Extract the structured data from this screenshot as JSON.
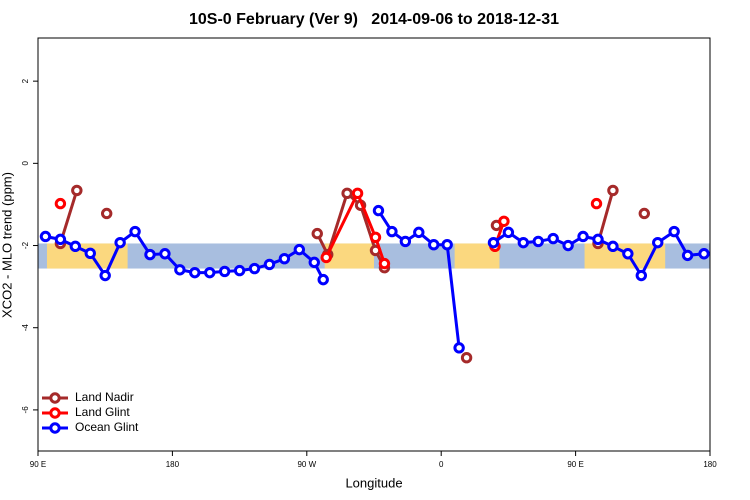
{
  "chart_data": {
    "type": "line",
    "title": "10S-0 February (Ver 9)   2014-09-06 to 2018-12-31",
    "x_label": "Longitude",
    "y_label": "XCO2 - MLO trend (ppm)",
    "xlim": [
      90,
      540
    ],
    "ylim": [
      -7,
      3.05
    ],
    "xticks": [
      {
        "value": 90,
        "label": "90 E"
      },
      180,
      {
        "value": 270,
        "label": "90 W"
      },
      {
        "value": 360,
        "label": "0"
      },
      {
        "value": 450,
        "label": "90 E"
      },
      {
        "value": 540,
        "label": "180"
      }
    ],
    "yticks": [
      -6,
      -4,
      -2,
      0,
      2
    ],
    "legend": "bottomleft",
    "map_strip": {
      "ylim": [
        -2.56,
        -1.95
      ],
      "ocean_color": "#a8bedf",
      "land_color": "#fbd87f",
      "land": [
        [
          96,
          150
        ],
        [
          282,
          315
        ],
        [
          369,
          399
        ],
        [
          456,
          510
        ]
      ]
    },
    "series": [
      {
        "name": "Land Nadir",
        "color": "#a52a2a",
        "x": [
          105,
          116,
          126,
          136,
          200,
          277,
          284,
          297,
          306,
          316,
          322,
          350,
          377,
          387,
          397,
          430,
          465,
          475,
          485,
          496
        ],
        "values": [
          -1.95,
          -0.66,
          null,
          -1.22,
          null,
          -1.71,
          -2.22,
          -0.73,
          -1.02,
          -2.12,
          -2.54,
          null,
          -4.73,
          null,
          -1.51,
          null,
          -1.95,
          -0.66,
          null,
          -1.22
        ]
      },
      {
        "name": "Land Glint",
        "color": "#ff0000",
        "x": [
          105,
          200,
          283,
          304,
          316,
          322,
          350,
          396,
          402,
          430,
          464
        ],
        "values": [
          -0.98,
          null,
          -2.29,
          -0.73,
          -1.8,
          -2.44,
          null,
          -2.02,
          -1.41,
          null,
          -0.98
        ]
      },
      {
        "name": "Ocean Glint",
        "color": "#0000ff",
        "x": [
          95,
          105,
          115,
          125,
          135,
          145,
          155,
          165,
          175,
          185,
          195,
          205,
          215,
          225,
          235,
          245,
          255,
          265,
          275,
          281,
          300,
          318,
          327,
          336,
          345,
          355,
          364,
          372,
          384,
          395,
          405,
          415,
          425,
          435,
          445,
          455,
          465,
          475,
          485,
          494,
          505,
          516,
          525,
          536
        ],
        "values": [
          -1.78,
          -1.85,
          -2.02,
          -2.19,
          -2.73,
          -1.93,
          -1.66,
          -2.22,
          -2.2,
          -2.59,
          -2.66,
          -2.66,
          -2.63,
          -2.61,
          -2.56,
          -2.46,
          -2.32,
          -2.1,
          -2.41,
          -2.83,
          null,
          -1.15,
          -1.66,
          -1.9,
          -1.68,
          -1.98,
          -1.98,
          -4.49,
          null,
          -1.93,
          -1.68,
          -1.93,
          -1.9,
          -1.83,
          -2.0,
          -1.78,
          -1.85,
          -2.02,
          -2.2,
          -2.73,
          -1.93,
          -1.66,
          -2.24,
          -2.2
        ]
      }
    ]
  }
}
